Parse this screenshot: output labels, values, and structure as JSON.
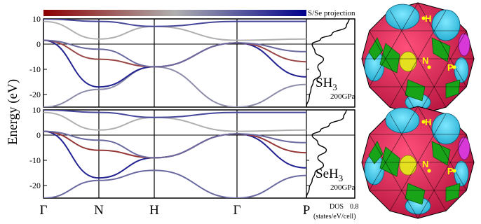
{
  "colorbar": {
    "label": "S/Se projection",
    "colors": [
      "#8b0000",
      "#b0b0b0",
      "#00008b"
    ]
  },
  "ylabel": "Energy (eV)",
  "dos_label": "DOS",
  "dos_units": "(states/eV/cell)",
  "dos_tick": "0.8",
  "kpoints": [
    "Γ",
    "N",
    "H",
    "Γ",
    "P"
  ],
  "bz_labels": {
    "H": "H",
    "N": "N",
    "P": "P"
  },
  "chart_data": [
    {
      "type": "line",
      "panel": "SH3",
      "title": "SH3",
      "label_main": "SH",
      "label_sub": "3",
      "pressure": "200GPa",
      "ylabel": "Energy (eV)",
      "ylim": [
        -25,
        10
      ],
      "yticks": [
        10,
        0,
        -10,
        -20
      ],
      "xticks": [
        "Γ",
        "N",
        "H",
        "Γ",
        "P"
      ],
      "bands": [
        {
          "x": [
            0,
            1,
            2,
            3,
            4
          ],
          "y": [
            -25,
            -18,
            -9,
            -25,
            -16
          ],
          "proj": 0.6
        },
        {
          "x": [
            0,
            1,
            2,
            3,
            4
          ],
          "y": [
            1.5,
            -17,
            -9,
            0.5,
            -13
          ],
          "proj": 0.9
        },
        {
          "x": [
            0,
            1,
            2,
            3,
            4
          ],
          "y": [
            1.5,
            -6,
            -9,
            0.5,
            -7
          ],
          "proj": 0.2
        },
        {
          "x": [
            0,
            1,
            2,
            3,
            4
          ],
          "y": [
            1.5,
            -2,
            -9,
            0.5,
            -3
          ],
          "proj": 0.7
        },
        {
          "x": [
            0,
            1,
            2,
            3,
            4
          ],
          "y": [
            9,
            2,
            7,
            1.5,
            2
          ],
          "proj": 0.5
        },
        {
          "x": [
            0,
            1,
            2,
            3,
            4
          ],
          "y": [
            10,
            9,
            7,
            9,
            9
          ],
          "proj": 0.8
        }
      ],
      "dos": {
        "energy": [
          10,
          7,
          4,
          2,
          0,
          -3,
          -6,
          -9,
          -12,
          -15,
          -18,
          -21,
          -25
        ],
        "value": [
          0.75,
          0.7,
          0.45,
          0.25,
          0.1,
          0.15,
          0.3,
          0.2,
          0.25,
          0.12,
          0.08,
          0.05,
          0.0
        ]
      }
    },
    {
      "type": "line",
      "panel": "SeH3",
      "title": "SeH3",
      "label_main": "SeH",
      "label_sub": "3",
      "pressure": "200GPa",
      "ylabel": "Energy (eV)",
      "ylim": [
        -25,
        10
      ],
      "yticks": [
        10,
        0,
        -10,
        -20
      ],
      "xticks": [
        "Γ",
        "N",
        "H",
        "Γ",
        "P"
      ],
      "bands": [
        {
          "x": [
            0,
            1,
            2,
            3,
            4
          ],
          "y": [
            -25,
            -18,
            -14,
            -25,
            -16
          ],
          "proj": 0.7
        },
        {
          "x": [
            0,
            1,
            2,
            3,
            4
          ],
          "y": [
            1.5,
            -17,
            -9,
            0.5,
            -13
          ],
          "proj": 0.9
        },
        {
          "x": [
            0,
            1,
            2,
            3,
            4
          ],
          "y": [
            1.5,
            -6,
            -9,
            0.5,
            -7
          ],
          "proj": 0.15
        },
        {
          "x": [
            0,
            1,
            2,
            3,
            4
          ],
          "y": [
            1.5,
            -2,
            -9,
            0.5,
            -3
          ],
          "proj": 0.7
        },
        {
          "x": [
            0,
            1,
            2,
            3,
            4
          ],
          "y": [
            9,
            2,
            7,
            1.5,
            2
          ],
          "proj": 0.5
        },
        {
          "x": [
            0,
            1,
            2,
            3,
            4
          ],
          "y": [
            10,
            9,
            7,
            9,
            9
          ],
          "proj": 0.8
        }
      ],
      "dos": {
        "energy": [
          10,
          7,
          4,
          2,
          0,
          -3,
          -6,
          -9,
          -12,
          -15,
          -18,
          -21,
          -25
        ],
        "value": [
          0.7,
          0.65,
          0.4,
          0.25,
          0.1,
          0.2,
          0.35,
          0.2,
          0.3,
          0.15,
          0.1,
          0.05,
          0.0
        ]
      }
    }
  ]
}
